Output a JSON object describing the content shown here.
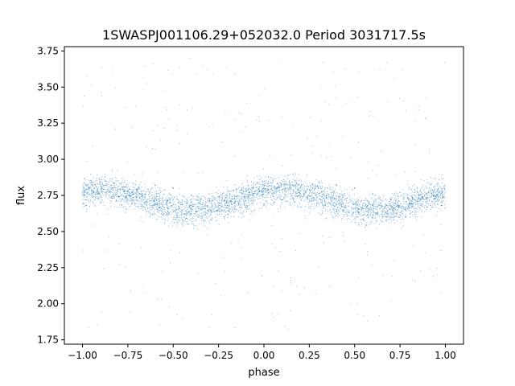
{
  "chart_data": {
    "type": "scatter",
    "title": "1SWASPJ001106.29+052032.0 Period 3031717.5s",
    "xlabel": "phase",
    "ylabel": "flux",
    "xlim": [
      -1.1,
      1.1
    ],
    "ylim": [
      1.72,
      3.78
    ],
    "xticks": [
      -1.0,
      -0.75,
      -0.5,
      -0.25,
      0.0,
      0.25,
      0.5,
      0.75,
      1.0
    ],
    "xtick_labels": [
      "−1.00",
      "−0.75",
      "−0.50",
      "−0.25",
      "0.00",
      "0.25",
      "0.50",
      "0.75",
      "1.00"
    ],
    "yticks": [
      1.75,
      2.0,
      2.25,
      2.5,
      2.75,
      3.0,
      3.25,
      3.5,
      3.75
    ],
    "ytick_labels": [
      "1.75",
      "2.00",
      "2.25",
      "2.50",
      "2.75",
      "3.00",
      "3.25",
      "3.50",
      "3.75"
    ],
    "grid": false,
    "point_color": "#1f77b4",
    "data_summary": {
      "x_range": [
        -1.0,
        1.0
      ],
      "baseline_flux": 2.72,
      "typical_spread": [
        2.5,
        2.95
      ],
      "outlier_range": [
        1.8,
        3.7
      ],
      "higher_flux_phases": [
        -0.6,
        0.4
      ],
      "lower_flux_phases": [
        -0.1,
        0.9
      ]
    },
    "series": [
      {
        "x": [
          -0.98,
          -0.9,
          -0.8,
          -0.7,
          -0.6,
          -0.5,
          -0.4,
          -0.3,
          -0.2,
          -0.1,
          0.0,
          0.1,
          0.2,
          0.3,
          0.4,
          0.5,
          0.6,
          0.7,
          0.8,
          0.9,
          0.98
        ],
        "y": [
          2.68,
          2.7,
          2.74,
          2.79,
          2.82,
          2.8,
          2.75,
          2.71,
          2.68,
          2.67,
          2.69,
          2.72,
          2.76,
          2.8,
          2.82,
          2.8,
          2.76,
          2.72,
          2.69,
          2.67,
          2.68
        ]
      }
    ]
  }
}
